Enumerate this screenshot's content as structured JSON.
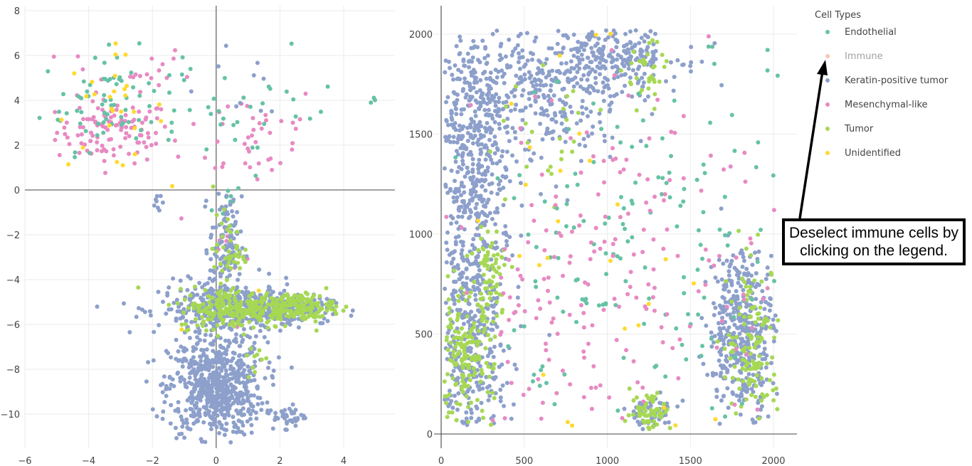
{
  "legend": {
    "title": "Cell Types",
    "items": [
      {
        "label": "Endothelial",
        "color": "#66c2a5",
        "visible": true
      },
      {
        "label": "Immune",
        "color": "#fc8d62",
        "visible": false
      },
      {
        "label": "Keratin-positive tumor",
        "color": "#8da0cb",
        "visible": true
      },
      {
        "label": "Mesenchymal-like",
        "color": "#e78ac3",
        "visible": true
      },
      {
        "label": "Tumor",
        "color": "#a6d854",
        "visible": true
      },
      {
        "label": "Unidentified",
        "color": "#ffd92f",
        "visible": true
      }
    ]
  },
  "annotation": {
    "line1": "Deselect immune cells by",
    "line2": "clicking on the legend."
  },
  "chart_data": [
    {
      "type": "scatter",
      "title": "",
      "xlabel": "",
      "ylabel": "",
      "xlim": [
        -6.1,
        5.6
      ],
      "ylim": [
        -11.6,
        8.3
      ],
      "xticks": [
        -6,
        -4,
        -2,
        0,
        2,
        4
      ],
      "xtick_labels": [
        "−6",
        "−4",
        "−2",
        "0",
        "2",
        "4"
      ],
      "yticks": [
        8,
        6,
        4,
        2,
        0,
        -2,
        -4,
        -6,
        -8,
        -10
      ],
      "ytick_labels": [
        "8",
        "6",
        "4",
        "2",
        "0",
        "−2",
        "−4",
        "−6",
        "−8",
        "−10"
      ],
      "grid": true,
      "zero_lines": true,
      "legend_position": "right",
      "clusters": [
        {
          "series": "Mesenchymal-like",
          "cx": -3.2,
          "cy": 2.6,
          "sx": 0.9,
          "sy": 0.7,
          "n": 110
        },
        {
          "series": "Mesenchymal-like",
          "cx": -2.8,
          "cy": 5.2,
          "sx": 1.0,
          "sy": 0.7,
          "n": 20
        },
        {
          "series": "Mesenchymal-like",
          "cx": 1.2,
          "cy": 2.5,
          "sx": 1.1,
          "sy": 1.2,
          "n": 40
        },
        {
          "series": "Mesenchymal-like",
          "cx": 0.3,
          "cy": -3.0,
          "sx": 0.4,
          "sy": 1.5,
          "n": 12
        },
        {
          "series": "Endothelial",
          "cx": -3.3,
          "cy": 4.0,
          "sx": 1.1,
          "sy": 1.1,
          "n": 75
        },
        {
          "series": "Endothelial",
          "cx": 1.2,
          "cy": 3.5,
          "sx": 1.3,
          "sy": 1.3,
          "n": 30
        },
        {
          "series": "Endothelial",
          "cx": 4.9,
          "cy": 4.0,
          "sx": 0.05,
          "sy": 0.05,
          "n": 3
        },
        {
          "series": "Endothelial",
          "cx": 0.5,
          "cy": -1.0,
          "sx": 0.2,
          "sy": 0.5,
          "n": 8
        },
        {
          "series": "Unidentified",
          "cx": -3.4,
          "cy": 3.5,
          "sx": 0.9,
          "sy": 1.3,
          "n": 28
        },
        {
          "series": "Unidentified",
          "cx": 1.5,
          "cy": -5.3,
          "sx": 1.3,
          "sy": 0.5,
          "n": 5
        },
        {
          "series": "Keratin-positive tumor",
          "cx": 0.0,
          "cy": -8.8,
          "sx": 0.75,
          "sy": 1.1,
          "n": 650
        },
        {
          "series": "Keratin-positive tumor",
          "cx": 0.4,
          "cy": -5.3,
          "sx": 1.1,
          "sy": 0.6,
          "n": 380
        },
        {
          "series": "Keratin-positive tumor",
          "cx": 2.0,
          "cy": -5.3,
          "sx": 0.8,
          "sy": 0.3,
          "n": 180
        },
        {
          "series": "Keratin-positive tumor",
          "cx": 0.3,
          "cy": -2.5,
          "sx": 0.25,
          "sy": 1.1,
          "n": 110
        },
        {
          "series": "Keratin-positive tumor",
          "cx": 2.3,
          "cy": -10.1,
          "sx": 0.25,
          "sy": 0.25,
          "n": 40
        },
        {
          "series": "Keratin-positive tumor",
          "cx": -1.7,
          "cy": -0.6,
          "sx": 0.15,
          "sy": 0.3,
          "n": 8
        },
        {
          "series": "Keratin-positive tumor",
          "cx": 0.2,
          "cy": 4.8,
          "sx": 1.2,
          "sy": 1.3,
          "n": 10
        },
        {
          "series": "Tumor",
          "cx": 0.6,
          "cy": -5.3,
          "sx": 0.9,
          "sy": 0.45,
          "n": 230
        },
        {
          "series": "Tumor",
          "cx": 2.5,
          "cy": -5.2,
          "sx": 0.6,
          "sy": 0.3,
          "n": 150
        },
        {
          "series": "Tumor",
          "cx": 0.4,
          "cy": -2.7,
          "sx": 0.25,
          "sy": 0.8,
          "n": 45
        },
        {
          "series": "Tumor",
          "cx": 1.3,
          "cy": -7.8,
          "sx": 0.2,
          "sy": 0.4,
          "n": 10
        }
      ]
    },
    {
      "type": "scatter",
      "title": "",
      "xlabel": "",
      "ylabel": "",
      "xlim": [
        -20,
        2150
      ],
      "ylim": [
        -140,
        2130
      ],
      "xticks": [
        0,
        500,
        1000,
        1500,
        2000
      ],
      "xtick_labels": [
        "0",
        "500",
        "1000",
        "1500",
        "2000"
      ],
      "yticks": [
        0,
        500,
        1000,
        1500,
        2000
      ],
      "ytick_labels": [
        "0",
        "500",
        "1000",
        "1500",
        "2000"
      ],
      "grid": true,
      "zero_lines": true,
      "legend_position": "right",
      "clusters": [
        {
          "series": "Keratin-positive tumor",
          "cx": 170,
          "cy": 1500,
          "sx": 130,
          "sy": 300,
          "n": 420
        },
        {
          "series": "Keratin-positive tumor",
          "cx": 600,
          "cy": 1700,
          "sx": 260,
          "sy": 170,
          "n": 330
        },
        {
          "series": "Keratin-positive tumor",
          "cx": 1050,
          "cy": 1900,
          "sx": 200,
          "sy": 90,
          "n": 250
        },
        {
          "series": "Keratin-positive tumor",
          "cx": 180,
          "cy": 750,
          "sx": 110,
          "sy": 280,
          "n": 300
        },
        {
          "series": "Keratin-positive tumor",
          "cx": 170,
          "cy": 250,
          "sx": 110,
          "sy": 150,
          "n": 170
        },
        {
          "series": "Keratin-positive tumor",
          "cx": 1810,
          "cy": 520,
          "sx": 100,
          "sy": 200,
          "n": 420
        },
        {
          "series": "Keratin-positive tumor",
          "cx": 1260,
          "cy": 100,
          "sx": 80,
          "sy": 50,
          "n": 55
        },
        {
          "series": "Tumor",
          "cx": 130,
          "cy": 370,
          "sx": 90,
          "sy": 160,
          "n": 180
        },
        {
          "series": "Tumor",
          "cx": 300,
          "cy": 800,
          "sx": 60,
          "sy": 120,
          "n": 70
        },
        {
          "series": "Tumor",
          "cx": 1260,
          "cy": 120,
          "sx": 60,
          "sy": 50,
          "n": 60
        },
        {
          "series": "Tumor",
          "cx": 1880,
          "cy": 450,
          "sx": 80,
          "sy": 200,
          "n": 130
        },
        {
          "series": "Tumor",
          "cx": 1250,
          "cy": 1800,
          "sx": 70,
          "sy": 120,
          "n": 35
        },
        {
          "series": "Tumor",
          "cx": 650,
          "cy": 1450,
          "sx": 200,
          "sy": 150,
          "n": 25
        },
        {
          "series": "Endothelial",
          "cx": 1050,
          "cy": 1050,
          "sx": 320,
          "sy": 380,
          "n": 95
        },
        {
          "series": "Endothelial",
          "cx": 1700,
          "cy": 900,
          "sx": 200,
          "sy": 500,
          "n": 40
        },
        {
          "series": "Endothelial",
          "cx": 700,
          "cy": 300,
          "sx": 300,
          "sy": 250,
          "n": 20
        },
        {
          "series": "Mesenchymal-like",
          "cx": 1000,
          "cy": 900,
          "sx": 380,
          "sy": 450,
          "n": 120
        },
        {
          "series": "Mesenchymal-like",
          "cx": 700,
          "cy": 400,
          "sx": 300,
          "sy": 300,
          "n": 55
        },
        {
          "series": "Mesenchymal-like",
          "cx": 1800,
          "cy": 800,
          "sx": 250,
          "sy": 500,
          "n": 40
        },
        {
          "series": "Unidentified",
          "cx": 900,
          "cy": 800,
          "sx": 400,
          "sy": 500,
          "n": 30
        }
      ]
    }
  ]
}
